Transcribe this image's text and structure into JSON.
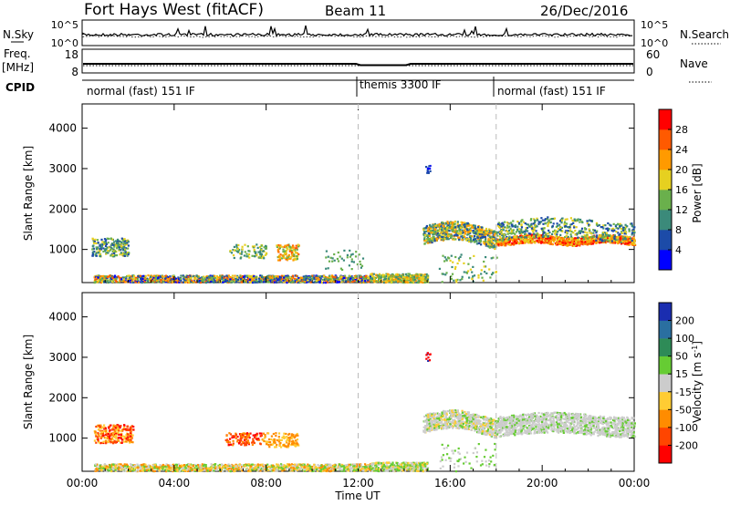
{
  "header": {
    "station": "Fort Hays West (fitACF)",
    "beam": "Beam 11",
    "date": "26/Dec/2016"
  },
  "nsky_panel": {
    "left_label": "N.Sky",
    "right_label": "N.Search",
    "left_ticks": [
      "10^5",
      "10^0"
    ],
    "right_ticks": [
      "10^5",
      "10^0"
    ]
  },
  "freq_panel": {
    "left_label": "Freq.",
    "left_unit": "[MHz]",
    "right_label": "Nave",
    "left_ticks": [
      "18",
      "8"
    ],
    "right_ticks": [
      "60",
      "0"
    ]
  },
  "cpid": {
    "label": "CPID",
    "segments": [
      {
        "name": "normal (fast) 151 IF",
        "start_hour": 0,
        "end_hour": 12
      },
      {
        "name": "themis 3300 IF",
        "start_hour": 12,
        "end_hour": 18
      },
      {
        "name": "normal (fast) 151 IF",
        "start_hour": 18,
        "end_hour": 24
      }
    ]
  },
  "chart_data": [
    {
      "type": "heatmap",
      "name": "power",
      "ylabel": "Slant Range [km]",
      "ylim": [
        180,
        4600
      ],
      "yticks": [
        1000,
        2000,
        3000,
        4000
      ],
      "xlim": [
        0,
        24
      ],
      "colorbar": {
        "label": "Power [dB]",
        "range": [
          0,
          31
        ],
        "ticks": [
          "4",
          "8",
          "12",
          "16",
          "20",
          "24",
          "28"
        ],
        "colors": [
          "#0000ff",
          "#1c4ba8",
          "#3b8a7a",
          "#6ab04c",
          "#e6d020",
          "#ff9a00",
          "#ff5a00",
          "#ff0000"
        ]
      },
      "regions": [
        {
          "t": [
            0.4,
            2.0
          ],
          "r": [
            800,
            1300
          ],
          "level": "green-blue"
        },
        {
          "t": [
            6.4,
            9.4
          ],
          "r": [
            700,
            1200
          ],
          "level": "green-orange"
        },
        {
          "t": [
            0.5,
            12.0
          ],
          "r": [
            180,
            400
          ],
          "level": "mixed"
        },
        {
          "t": [
            14.8,
            24.0
          ],
          "r": [
            1000,
            2000
          ],
          "level": "orange-red"
        }
      ]
    },
    {
      "type": "heatmap",
      "name": "velocity",
      "ylabel": "Slant Range [km]",
      "xlabel": "Time UT",
      "ylim": [
        180,
        4600
      ],
      "yticks": [
        1000,
        2000,
        3000,
        4000
      ],
      "xlim": [
        0,
        24
      ],
      "xticks": [
        "00:00",
        "04:00",
        "08:00",
        "12:00",
        "16:00",
        "20:00",
        "00:00"
      ],
      "colorbar": {
        "label": "Velocity [m s^-1]",
        "ticks": [
          "200",
          "100",
          "50",
          "15",
          "-15",
          "-50",
          "-100",
          "-200"
        ],
        "colors": [
          "#1a2db0",
          "#2a6fa0",
          "#2e8b57",
          "#66cc33",
          "#cccccc",
          "#ffcc33",
          "#ff8c00",
          "#ff4500",
          "#ff0000"
        ]
      },
      "regions": [
        {
          "t": [
            0.5,
            2.2
          ],
          "r": [
            900,
            1350
          ],
          "level": "negative"
        },
        {
          "t": [
            6.2,
            9.4
          ],
          "r": [
            800,
            1200
          ],
          "level": "negative"
        },
        {
          "t": [
            14.8,
            24.0
          ],
          "r": [
            1000,
            2000
          ],
          "level": "near-zero"
        }
      ]
    }
  ]
}
